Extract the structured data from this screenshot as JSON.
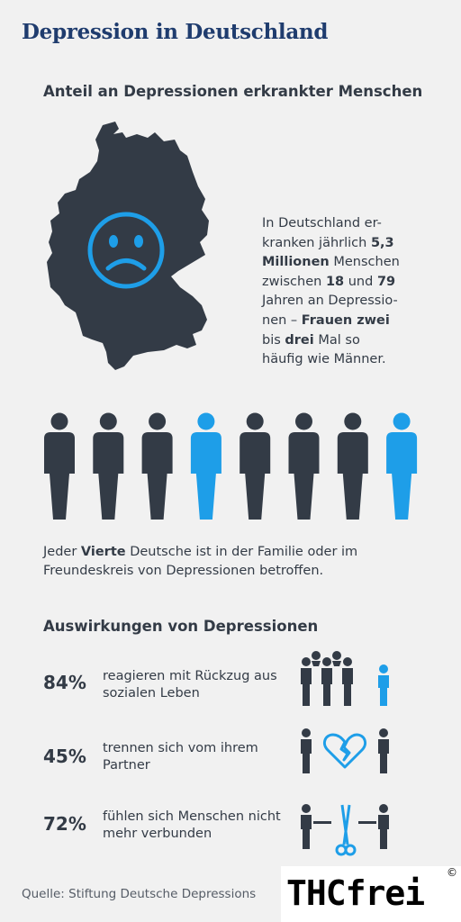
{
  "header": {
    "title": "Depression in Deutschland",
    "subtitle": "Anteil an Depressionen erkrankter Menschen"
  },
  "description": {
    "l1": "In Deutschland er-",
    "l2a": "kranken jährlich ",
    "l2b": "5,3",
    "l3a": "Millionen",
    "l3b": " Menschen",
    "l4a": "zwischen ",
    "l4b": "18",
    "l4c": " und ",
    "l4d": "79",
    "l5": "Jahren an Depressio-",
    "l6a": "nen – ",
    "l6b": "Frauen zwei",
    "l7a": "bis ",
    "l7b": "drei",
    "l7c": " Mal so",
    "l8": "häufig wie Männer."
  },
  "people_row": {
    "count": 8,
    "highlighted": [
      4,
      8
    ],
    "dark_color": "#333b46",
    "accent_color": "#1e9ee8"
  },
  "caption": {
    "a": "Jeder ",
    "b": "Vierte",
    "c": " Deutsche ist in der Familie oder im Freundeskreis von Depressionen betroffen."
  },
  "effects": {
    "title": "Auswirkungen von Depressionen",
    "items": [
      {
        "percent": "84%",
        "text": "reagieren mit Rückzug aus sozialen Leben",
        "icon": "withdrawn-person-icon"
      },
      {
        "percent": "45%",
        "text": "trennen sich vom ihrem Partner",
        "icon": "broken-heart-icon"
      },
      {
        "percent": "72%",
        "text": "fühlen sich Menschen nicht mehr verbunden",
        "icon": "scissors-cut-icon"
      }
    ]
  },
  "footer": {
    "source": "Quelle: Stiftung Deutsche Depressions",
    "logo": "THCfrei",
    "logo_mark": "©"
  }
}
